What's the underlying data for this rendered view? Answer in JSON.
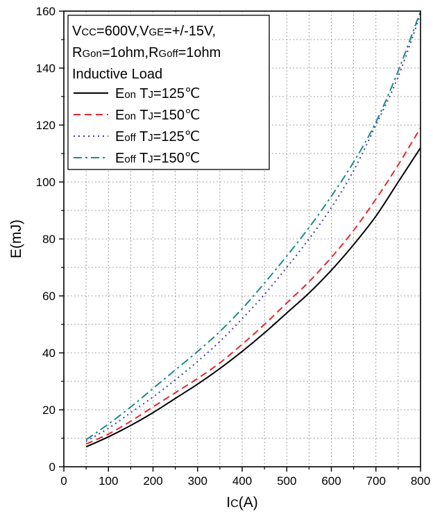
{
  "chart_data": {
    "type": "line",
    "xlabel": {
      "main": "I",
      "sub": "C",
      "unit": "(A)"
    },
    "ylabel": "E(mJ)",
    "xlim": [
      0,
      800
    ],
    "ylim": [
      0,
      160
    ],
    "xticks": [
      "0",
      "100",
      "200",
      "300",
      "400",
      "500",
      "600",
      "700",
      "800"
    ],
    "yticks": [
      "0",
      "20",
      "40",
      "60",
      "80",
      "100",
      "120",
      "140",
      "160"
    ],
    "grid": true,
    "legend_position": "top-left",
    "conditions": [
      [
        {
          "t": "V",
          "small": false
        },
        {
          "t": "CC",
          "small": true
        },
        {
          "t": "=600V,",
          "small": false
        },
        {
          "t": "V",
          "small": false
        },
        {
          "t": "GE",
          "small": true
        },
        {
          "t": "=+/-15V,",
          "small": false
        }
      ],
      [
        {
          "t": "R",
          "small": false
        },
        {
          "t": "Gon",
          "small": true
        },
        {
          "t": "=1ohm,",
          "small": false
        },
        {
          "t": "R",
          "small": false
        },
        {
          "t": "Goff",
          "small": true
        },
        {
          "t": "=1ohm",
          "small": false
        }
      ],
      [
        {
          "t": "Inductive Load",
          "small": false
        }
      ]
    ],
    "series": [
      {
        "name": "Eon TJ=125℃",
        "label_parts": [
          {
            "t": "E",
            "small": false
          },
          {
            "t": "on",
            "small": true
          },
          {
            "t": " T",
            "small": false
          },
          {
            "t": "J",
            "small": true
          },
          {
            "t": "=125℃",
            "small": false
          }
        ],
        "color": "#000000",
        "dash": "none",
        "x": [
          50,
          100,
          150,
          200,
          250,
          300,
          350,
          400,
          450,
          500,
          550,
          600,
          650,
          700,
          750,
          800
        ],
        "y": [
          7,
          10.5,
          14.5,
          19,
          24,
          29,
          34.5,
          40.5,
          47,
          54,
          61,
          69,
          78,
          88,
          100,
          112
        ]
      },
      {
        "name": "Eon TJ=150℃",
        "label_parts": [
          {
            "t": "E",
            "small": false
          },
          {
            "t": "on",
            "small": true
          },
          {
            "t": " T",
            "small": false
          },
          {
            "t": "J",
            "small": true
          },
          {
            "t": "=150℃",
            "small": false
          }
        ],
        "color": "#e8262c",
        "dash": "10,6",
        "x": [
          50,
          100,
          150,
          200,
          250,
          300,
          350,
          400,
          450,
          500,
          550,
          600,
          650,
          700,
          750,
          800
        ],
        "y": [
          8,
          11.5,
          16,
          21,
          26,
          31,
          36.5,
          43,
          50,
          57.5,
          65,
          73.5,
          83,
          94,
          106,
          119
        ]
      },
      {
        "name": "Eoff TJ=125℃",
        "label_parts": [
          {
            "t": "E",
            "small": false
          },
          {
            "t": "off",
            "small": true
          },
          {
            "t": " T",
            "small": false
          },
          {
            "t": "J",
            "small": true
          },
          {
            "t": "=125℃",
            "small": false
          }
        ],
        "color": "#3a3ab0",
        "dash": "2,5",
        "x": [
          50,
          100,
          150,
          200,
          250,
          300,
          350,
          400,
          450,
          500,
          550,
          600,
          650,
          700,
          750,
          800
        ],
        "y": [
          9,
          13.5,
          19,
          24.5,
          30.5,
          37,
          44,
          52,
          60.5,
          70,
          80,
          91,
          104,
          120,
          137,
          159
        ]
      },
      {
        "name": "Eoff TJ=150℃",
        "label_parts": [
          {
            "t": "E",
            "small": false
          },
          {
            "t": "off",
            "small": true
          },
          {
            "t": " T",
            "small": false
          },
          {
            "t": "J",
            "small": true
          },
          {
            "t": "=150℃",
            "small": false
          }
        ],
        "color": "#1b8a8a",
        "dash": "12,5,3,5",
        "x": [
          50,
          100,
          150,
          200,
          250,
          300,
          350,
          400,
          450,
          500,
          550,
          600,
          650,
          700,
          750,
          800
        ],
        "y": [
          9.5,
          15,
          21,
          27.5,
          34,
          40.5,
          47.5,
          55.5,
          64.5,
          74,
          84,
          95,
          107,
          121,
          139,
          160
        ]
      }
    ]
  }
}
